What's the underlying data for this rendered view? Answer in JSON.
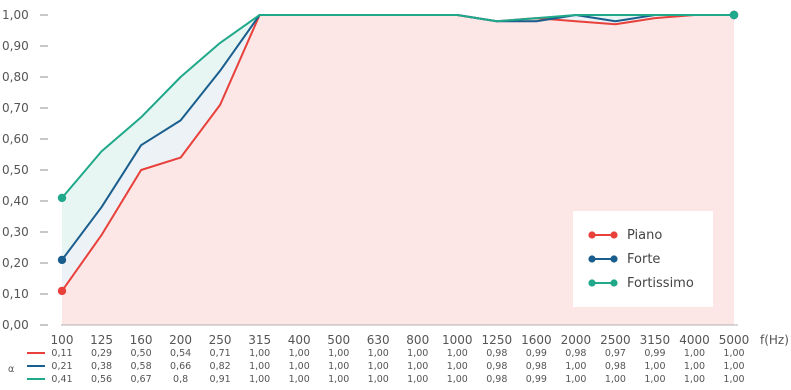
{
  "chart_data": {
    "type": "line",
    "x": [
      "100",
      "125",
      "160",
      "200",
      "250",
      "315",
      "400",
      "500",
      "630",
      "800",
      "1000",
      "1250",
      "1600",
      "2000",
      "2500",
      "3150",
      "4000",
      "5000"
    ],
    "xunit": "f(Hz)",
    "ylabel": "",
    "ylim": [
      0,
      1
    ],
    "yticks": [
      "0,00",
      "0,10",
      "0,20",
      "0,30",
      "0,40",
      "0,50",
      "0,60",
      "0,70",
      "0,80",
      "0,90",
      "1,00"
    ],
    "table_row_label": "α",
    "legend_position": "bottom-right",
    "grid": false,
    "series": [
      {
        "name": "Piano",
        "color": "#e8403a",
        "values": [
          0.11,
          0.29,
          0.5,
          0.54,
          0.71,
          1.0,
          1.0,
          1.0,
          1.0,
          1.0,
          1.0,
          0.98,
          0.99,
          0.98,
          0.97,
          0.99,
          1.0,
          1.0
        ],
        "labels": [
          "0,11",
          "0,29",
          "0,50",
          "0,54",
          "0,71",
          "1,00",
          "1,00",
          "1,00",
          "1,00",
          "1,00",
          "1,00",
          "0,98",
          "0,99",
          "0,98",
          "0,97",
          "0,99",
          "1,00",
          "1,00"
        ]
      },
      {
        "name": "Forte",
        "color": "#1a5e8e",
        "values": [
          0.21,
          0.38,
          0.58,
          0.66,
          0.82,
          1.0,
          1.0,
          1.0,
          1.0,
          1.0,
          1.0,
          0.98,
          0.98,
          1.0,
          0.98,
          1.0,
          1.0,
          1.0
        ],
        "labels": [
          "0,21",
          "0,38",
          "0,58",
          "0,66",
          "0,82",
          "1,00",
          "1,00",
          "1,00",
          "1,00",
          "1,00",
          "1,00",
          "0,98",
          "0,98",
          "1,00",
          "0,98",
          "1,00",
          "1,00",
          "1,00"
        ]
      },
      {
        "name": "Fortissimo",
        "color": "#1fa88a",
        "values": [
          0.41,
          0.56,
          0.67,
          0.8,
          0.91,
          1.0,
          1.0,
          1.0,
          1.0,
          1.0,
          1.0,
          0.98,
          0.99,
          1.0,
          1.0,
          1.0,
          1.0,
          1.0
        ],
        "labels": [
          "0,41",
          "0,56",
          "0,67",
          "0,8",
          "0,91",
          "1,00",
          "1,00",
          "1,00",
          "1,00",
          "1,00",
          "1,00",
          "0,98",
          "0,99",
          "1,00",
          "1,00",
          "1,00",
          "1,00",
          "1,00"
        ]
      }
    ]
  }
}
